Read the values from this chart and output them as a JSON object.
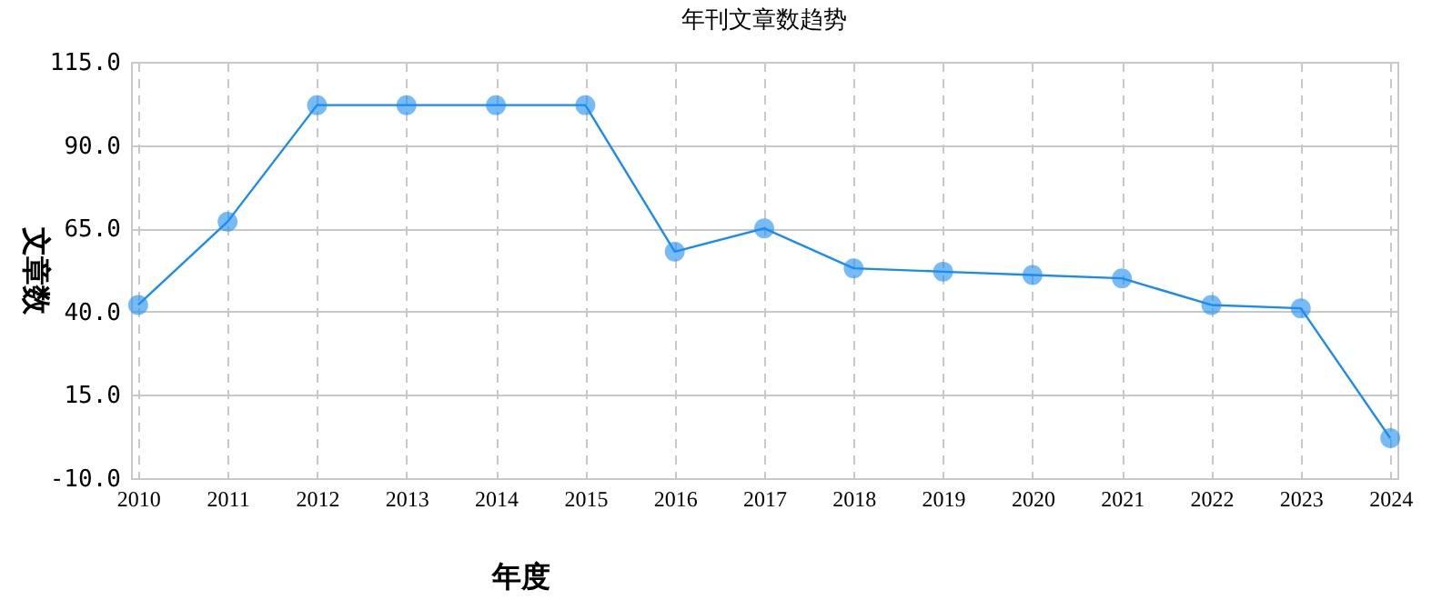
{
  "chart_data": {
    "type": "line",
    "title": "年刊文章数趋势",
    "xlabel": "年度",
    "ylabel": "文章数",
    "categories": [
      "2010",
      "2011",
      "2012",
      "2013",
      "2014",
      "2015",
      "2016",
      "2017",
      "2018",
      "2019",
      "2020",
      "2021",
      "2022",
      "2023",
      "2024"
    ],
    "series": [
      {
        "color": "#1a8cf0",
        "values": [
          42,
          67,
          102,
          102,
          102,
          102,
          58,
          65,
          53,
          52,
          51,
          50,
          42,
          41,
          2
        ]
      }
    ],
    "ylim": [
      -10,
      115
    ],
    "yticks": [
      {
        "value": -10,
        "label": "-10.0"
      },
      {
        "value": 15,
        "label": "15.0"
      },
      {
        "value": 40,
        "label": "40.0"
      },
      {
        "value": 65,
        "label": "65.0"
      },
      {
        "value": 90,
        "label": "90.0"
      },
      {
        "value": 115,
        "label": "115.0"
      }
    ],
    "grid": true,
    "marker": "circle",
    "line_style": "solid"
  }
}
